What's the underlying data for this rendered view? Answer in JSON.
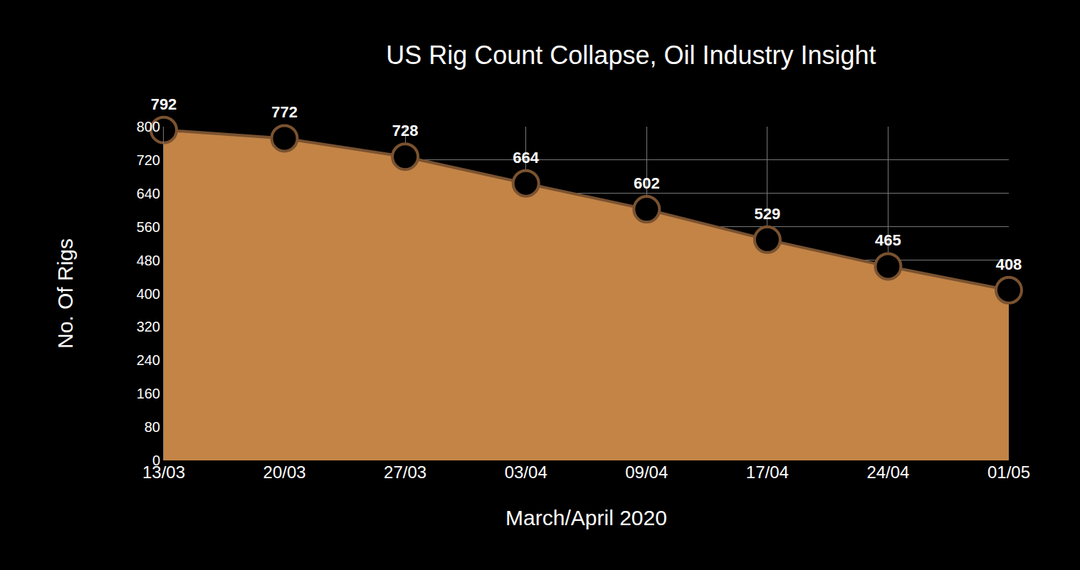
{
  "chart_data": {
    "type": "area",
    "title": "US Rig Count Collapse, Oil Industry Insight",
    "xlabel": "March/April 2020",
    "ylabel": "No. Of Rigs",
    "categories": [
      "13/03",
      "20/03",
      "27/03",
      "03/04",
      "09/04",
      "17/04",
      "24/04",
      "01/05"
    ],
    "values": [
      792,
      772,
      728,
      664,
      602,
      529,
      465,
      408
    ],
    "color": "#c38446",
    "marker": "circle",
    "ylim": [
      0,
      800
    ],
    "yticks": [
      0,
      80,
      160,
      240,
      320,
      400,
      480,
      560,
      640,
      720,
      800
    ],
    "grid": true,
    "data_labels": true
  }
}
